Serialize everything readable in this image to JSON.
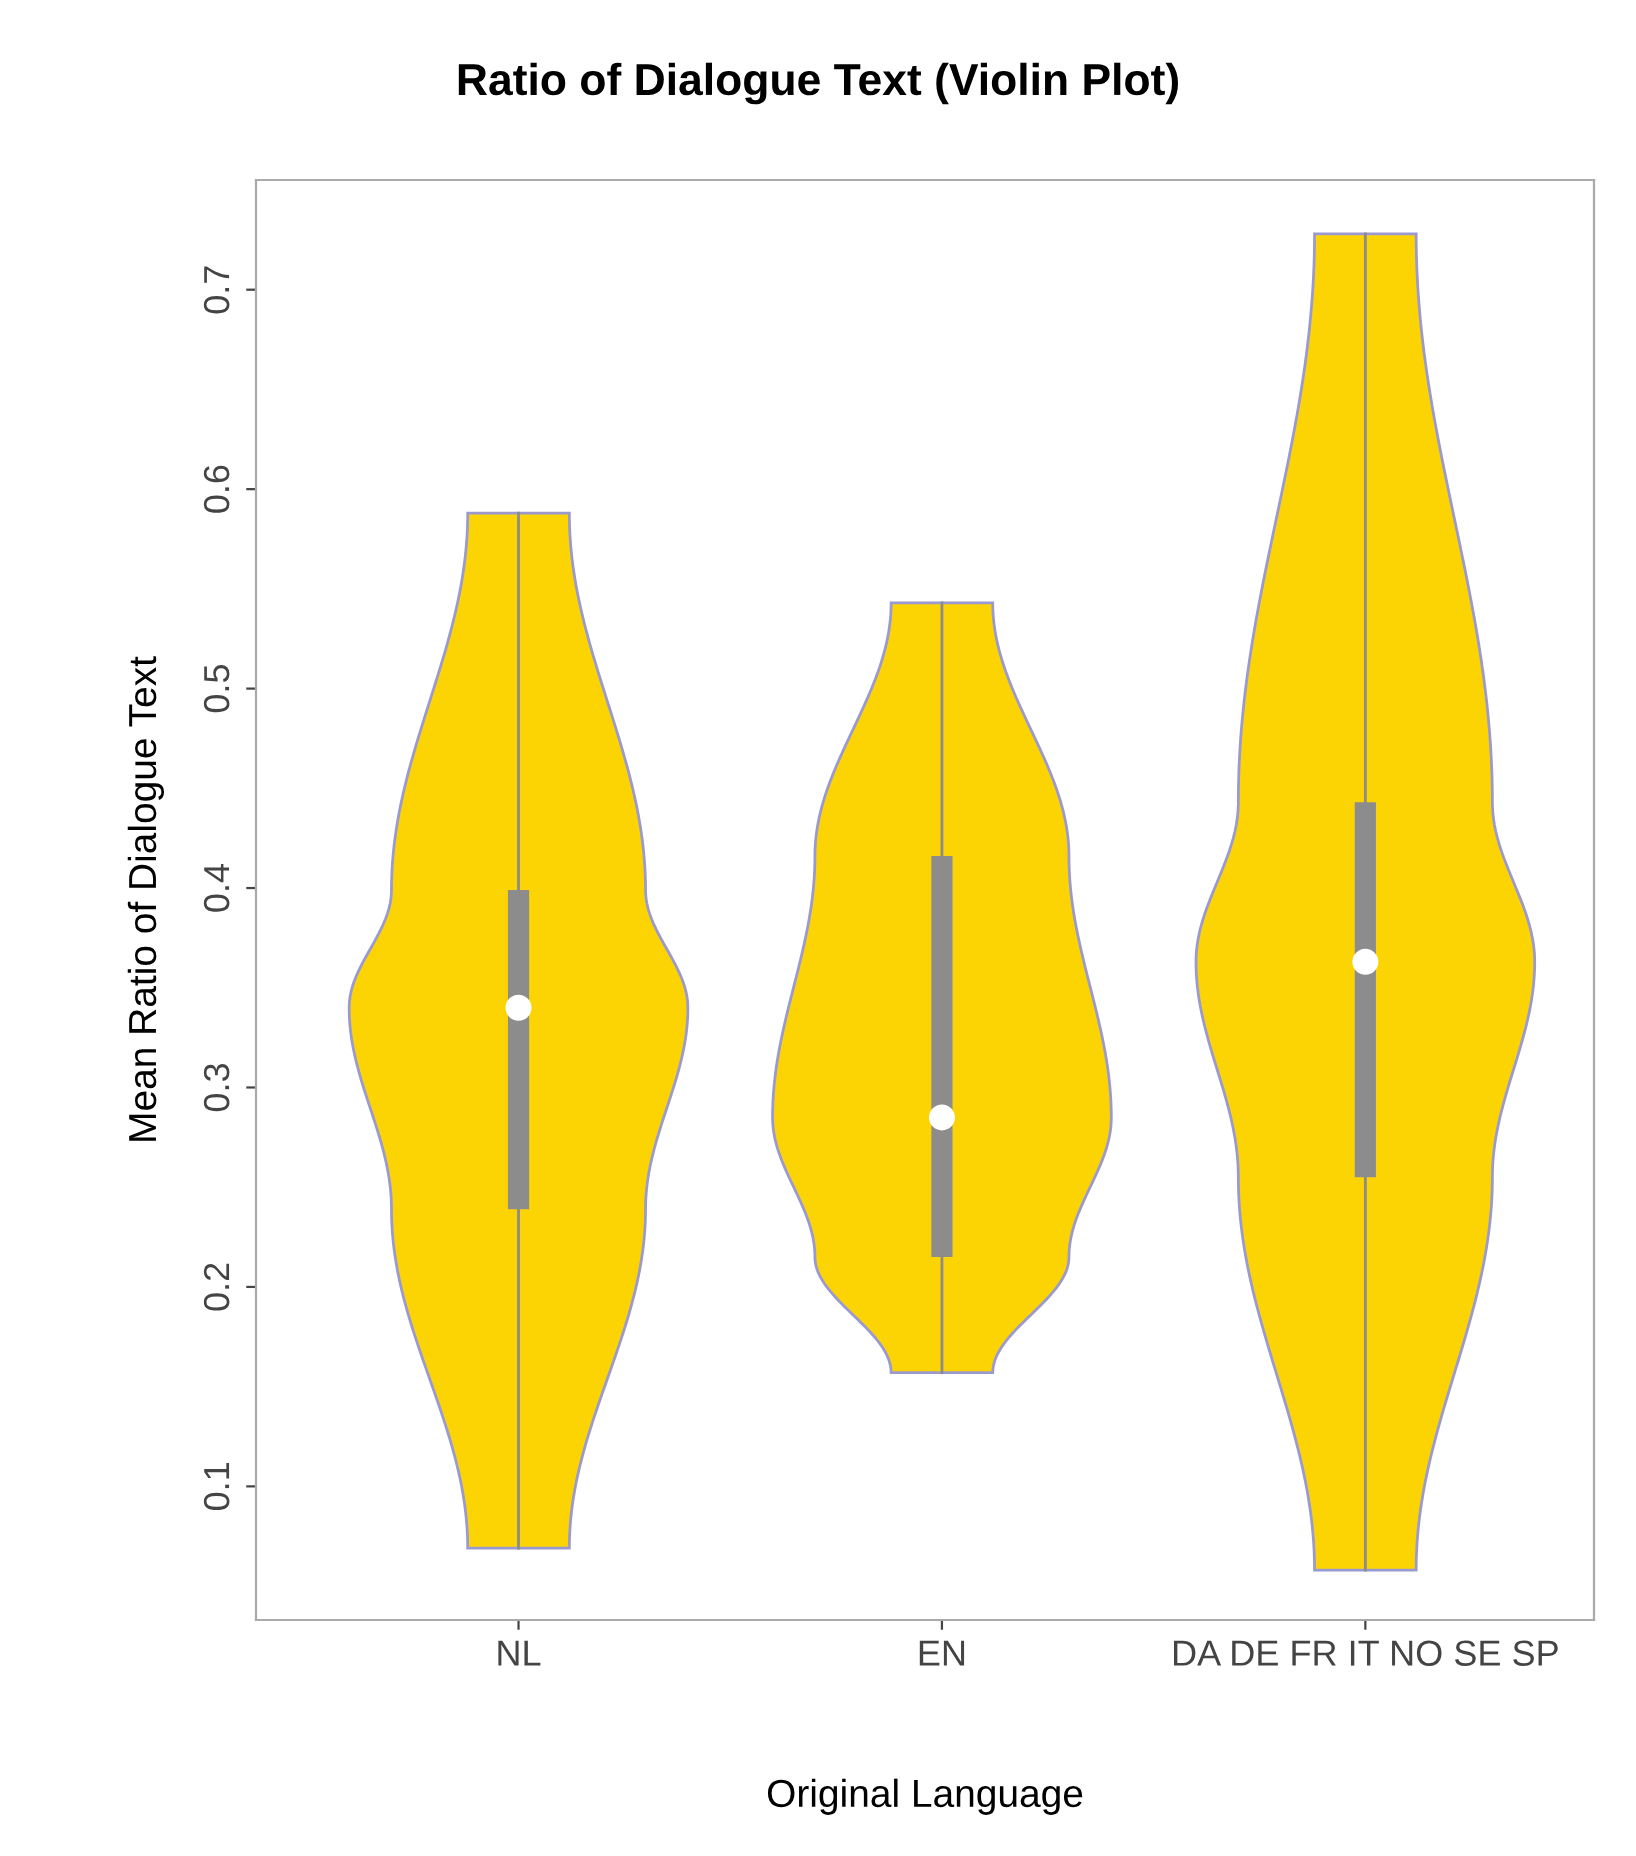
{
  "chart_data": {
    "type": "box",
    "title": "Ratio of Dialogue Text (Violin Plot)",
    "xlabel": "Original Language",
    "ylabel": "Mean Ratio of Dialogue Text",
    "categories": [
      "NL",
      "EN",
      "DA DE FR IT NO SE SP"
    ],
    "boxes": [
      {
        "low": 0.069,
        "q1": 0.239,
        "median": 0.34,
        "q3": 0.399,
        "high": 0.588
      },
      {
        "low": 0.157,
        "q1": 0.215,
        "median": 0.285,
        "q3": 0.416,
        "high": 0.543
      },
      {
        "low": 0.058,
        "q1": 0.255,
        "median": 0.363,
        "q3": 0.443,
        "high": 0.728
      }
    ],
    "color": "#8c8c8c",
    "ylim": [
      0.033,
      0.755
    ],
    "yticks": [
      0.1,
      0.2,
      0.3,
      0.4,
      0.5,
      0.6,
      0.7
    ],
    "grid": false
  }
}
